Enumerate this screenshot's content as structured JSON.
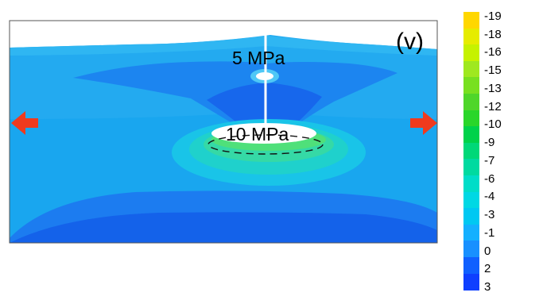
{
  "panel_label": "(v)",
  "annotations": {
    "top_pressure": "5 MPa",
    "hole_pressure": "10 MPa"
  },
  "colorbar": {
    "labels": [
      "-19",
      "-18",
      "-16",
      "-15",
      "-13",
      "-12",
      "-10",
      "-9",
      "-7",
      "-6",
      "-4",
      "-3",
      "-1",
      "0",
      "2",
      "3"
    ],
    "colors": [
      "#ffd700",
      "#e6ec00",
      "#c6f200",
      "#9fe81f",
      "#78e020",
      "#4fd62a",
      "#2ad62a",
      "#00d24a",
      "#00d878",
      "#00daa0",
      "#00ddc8",
      "#00d8e4",
      "#00c8f2",
      "#14b0ff",
      "#1890ff",
      "#1060ff",
      "#0f3fff"
    ]
  },
  "colors": {
    "background_field": "#1ea6f0",
    "upper_field": "#23a9ee",
    "deep_blue": "#1a76ee",
    "darkest_blue": "#1455e8",
    "halo_inner": "#33d6a4",
    "halo_mid": "#19c9d8",
    "ring": "#48e07a",
    "arrow": "#f03a1e"
  },
  "icons": {
    "left_arrow": "left-arrow-icon",
    "right_arrow": "right-arrow-icon"
  }
}
